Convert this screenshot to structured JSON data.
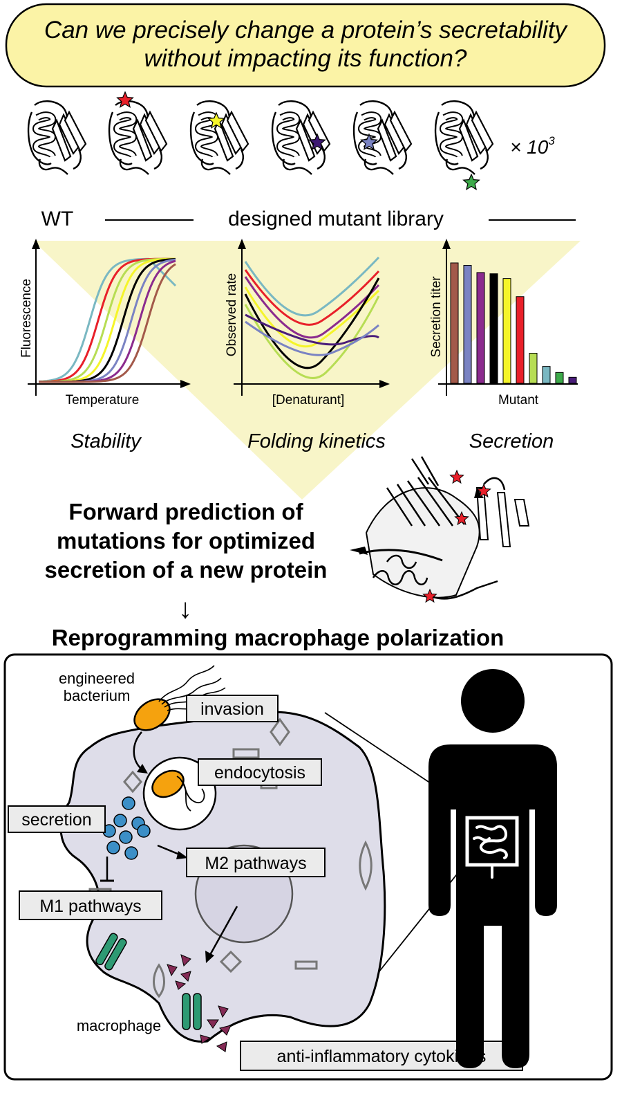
{
  "question": {
    "line1": "Can we precisely change a protein’s secretability",
    "line2": "without impacting its function?"
  },
  "library": {
    "multiplier": "× 10",
    "exponent": "3",
    "wt_label": "WT",
    "mutant_label": "designed mutant library",
    "star_colors": [
      "#e8202a",
      "#f5f52a",
      "#3d1873",
      "#7a83c3",
      "#3daa4a"
    ]
  },
  "colors": {
    "callout_fill": "#fbf3a6",
    "triangle_fill": "#f8f5c8",
    "cell_fill": "#dedde9",
    "bead": "#3c8fc7",
    "bacterium": "#f5a20e",
    "receptor": "#2e9a73",
    "cytokine": "#842a55",
    "mutation_star": "#e8202a"
  },
  "panels": {
    "stability": {
      "caption": "Stability",
      "ylabel": "Fluorescence",
      "xlabel": "Temperature",
      "series_colors": [
        "#7ab8c2",
        "#e8202a",
        "#b7dd54",
        "#f5f52a",
        "#000000",
        "#7a83c3",
        "#8b2b8e",
        "#a3594a"
      ]
    },
    "kinetics": {
      "caption": "Folding kinetics",
      "ylabel": "Observed rate",
      "xlabel": "[Denaturant]",
      "series_colors": [
        "#7ab8c2",
        "#e8202a",
        "#8b2b8e",
        "#f5f52a",
        "#000000",
        "#b7dd54",
        "#4a1d7a",
        "#7a83c3"
      ]
    },
    "secretion": {
      "caption": "Secretion",
      "ylabel": "Secretion titer",
      "xlabel": "Mutant",
      "bar_colors": [
        "#a3594a",
        "#7a83c3",
        "#8b2b8e",
        "#000000",
        "#f5f52a",
        "#e8202a",
        "#b7dd54",
        "#7ab8c2",
        "#3daa4a",
        "#4a1d7a"
      ],
      "bar_values": [
        1.0,
        0.98,
        0.92,
        0.91,
        0.87,
        0.72,
        0.25,
        0.14,
        0.09,
        0.05
      ]
    }
  },
  "forward": {
    "line1": "Forward prediction of",
    "line2": "mutations for optimized",
    "line3": "secretion of a new protein",
    "arrow": "↓"
  },
  "reprogramming": "Reprogramming macrophage polarization",
  "cell_labels": {
    "engineered1": "engineered",
    "engineered2": "bacterium",
    "invasion": "invasion",
    "endocytosis": "endocytosis",
    "secretion": "secretion",
    "m2": "M2 pathways",
    "m1": "M1 pathways",
    "macrophage": "macrophage",
    "cytokines": "anti-inflammatory cytokines"
  }
}
